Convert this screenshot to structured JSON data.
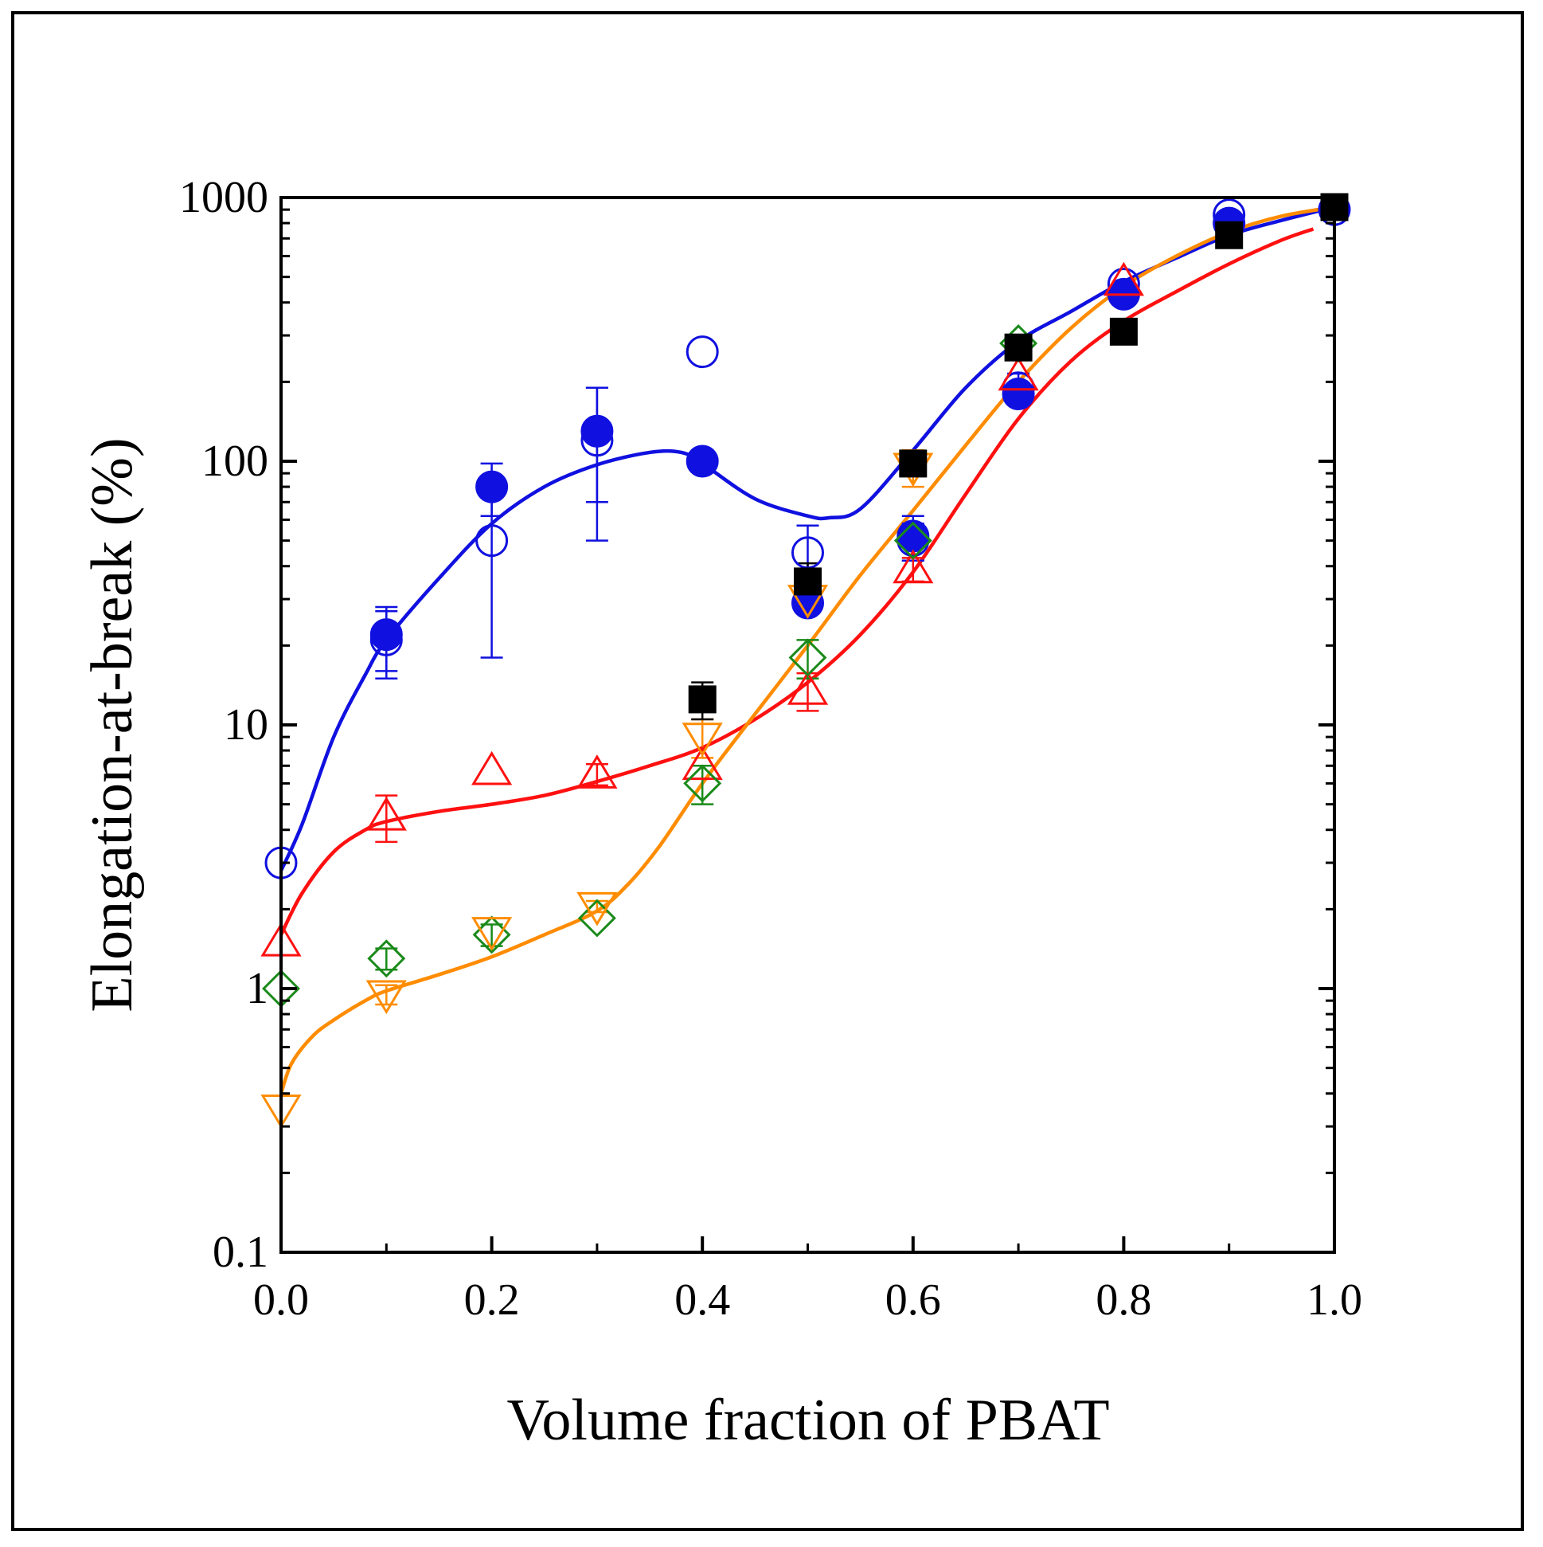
{
  "chart_data": {
    "type": "scatter",
    "title": "",
    "xlabel": "Volume fraction of PBAT",
    "ylabel": "Elongation-at-break (%)",
    "xlim": [
      0,
      1
    ],
    "ylim": [
      0.1,
      1000
    ],
    "yscale": "log",
    "grid": false,
    "x_ticks": [
      0.0,
      0.2,
      0.4,
      0.6,
      0.8,
      1.0
    ],
    "x_tick_labels": [
      "0.0",
      "0.2",
      "0.4",
      "0.6",
      "0.8",
      "1.0"
    ],
    "y_ticks": [
      0.1,
      1,
      10,
      100,
      1000
    ],
    "y_tick_labels": [
      "0.1",
      "1",
      "10",
      "100",
      "1000"
    ],
    "series": [
      {
        "name": "open circles",
        "marker": "circle-open",
        "color": "#1010e0",
        "x": [
          0.0,
          0.1,
          0.2,
          0.3,
          0.4,
          0.5,
          0.6,
          0.7,
          0.8,
          0.9,
          1.0
        ],
        "y": [
          3.0,
          21,
          50,
          120,
          260,
          45,
          50,
          190,
          470,
          860,
          900
        ],
        "err": [
          0,
          6,
          32,
          70,
          0,
          12,
          8,
          25,
          0,
          0,
          0
        ]
      },
      {
        "name": "filled circles",
        "marker": "circle-filled",
        "color": "#1010e0",
        "x": [
          0.1,
          0.2,
          0.3,
          0.4,
          0.5,
          0.6,
          0.7,
          0.8,
          0.9
        ],
        "y": [
          22,
          80,
          130,
          100,
          29,
          52,
          180,
          430,
          800
        ],
        "err": [
          6,
          18,
          60,
          0,
          0,
          10,
          0,
          0,
          0
        ]
      },
      {
        "name": "open triangles up",
        "marker": "triangle-up-open",
        "color": "#ff1010",
        "x": [
          0.0,
          0.1,
          0.2,
          0.3,
          0.4,
          0.5,
          0.6,
          0.7,
          0.8
        ],
        "y": [
          1.5,
          4.5,
          6.7,
          6.5,
          7.0,
          13.5,
          39,
          210,
          480
        ],
        "err": [
          0,
          0.9,
          0,
          0.6,
          0,
          2.2,
          4,
          0,
          0
        ]
      },
      {
        "name": "open diamonds",
        "marker": "diamond-open",
        "color": "#1a8a1a",
        "x": [
          0.0,
          0.1,
          0.2,
          0.3,
          0.4,
          0.5,
          0.6,
          0.7
        ],
        "y": [
          1.0,
          1.3,
          1.6,
          1.85,
          6.0,
          18,
          50,
          280
        ],
        "err": [
          0,
          0.12,
          0.15,
          0,
          1.0,
          3,
          0,
          0
        ]
      },
      {
        "name": "open triangles down",
        "marker": "triangle-down-open",
        "color": "#ff8c00",
        "x": [
          0.0,
          0.1,
          0.2,
          0.3,
          0.4,
          0.5,
          0.6
        ],
        "y": [
          0.35,
          0.95,
          1.65,
          2.05,
          9.0,
          30,
          95
        ],
        "err": [
          0,
          0.08,
          0,
          0.1,
          1.5,
          3,
          15
        ]
      },
      {
        "name": "filled squares",
        "marker": "square-filled",
        "color": "#000000",
        "x": [
          0.4,
          0.5,
          0.6,
          0.7,
          0.8,
          0.9,
          1.0
        ],
        "y": [
          12.5,
          35,
          98,
          270,
          310,
          720,
          920
        ],
        "err": [
          2,
          6,
          0,
          0,
          0,
          0,
          0
        ]
      }
    ],
    "fit_lines": [
      {
        "name": "blue fit",
        "color": "#1010e0",
        "x": [
          0.0,
          0.02,
          0.05,
          0.08,
          0.1,
          0.15,
          0.2,
          0.25,
          0.3,
          0.35,
          0.38,
          0.4,
          0.45,
          0.5,
          0.52,
          0.55,
          0.6,
          0.65,
          0.7,
          0.75,
          0.8,
          0.85,
          0.9,
          0.95,
          1.0
        ],
        "y": [
          2.8,
          4.2,
          9,
          15.5,
          21,
          36,
          58,
          80,
          97,
          108,
          108,
          98,
          72,
          62,
          61,
          66,
          110,
          190,
          285,
          370,
          480,
          590,
          720,
          820,
          920
        ]
      },
      {
        "name": "red fit",
        "color": "#ff1010",
        "x": [
          0.0,
          0.02,
          0.05,
          0.08,
          0.1,
          0.15,
          0.2,
          0.25,
          0.3,
          0.35,
          0.4,
          0.45,
          0.5,
          0.55,
          0.6,
          0.65,
          0.7,
          0.75,
          0.8,
          0.85,
          0.9,
          0.95,
          0.98
        ],
        "y": [
          1.6,
          2.3,
          3.3,
          4.0,
          4.3,
          4.7,
          5.0,
          5.4,
          6.1,
          7.0,
          8.2,
          10.5,
          14.5,
          22,
          38,
          75,
          145,
          240,
          340,
          440,
          560,
          690,
          760
        ]
      },
      {
        "name": "orange fit",
        "color": "#ff8c00",
        "x": [
          0.0,
          0.01,
          0.03,
          0.05,
          0.08,
          0.1,
          0.15,
          0.2,
          0.25,
          0.3,
          0.33,
          0.36,
          0.4,
          0.45,
          0.5,
          0.55,
          0.6,
          0.65,
          0.7,
          0.75,
          0.8,
          0.85,
          0.9,
          0.95,
          1.0
        ],
        "y": [
          0.4,
          0.52,
          0.66,
          0.76,
          0.9,
          0.98,
          1.13,
          1.32,
          1.6,
          1.97,
          2.5,
          3.5,
          6.0,
          11,
          20,
          37,
          65,
          115,
          200,
          320,
          460,
          600,
          740,
          850,
          920
        ]
      }
    ]
  }
}
